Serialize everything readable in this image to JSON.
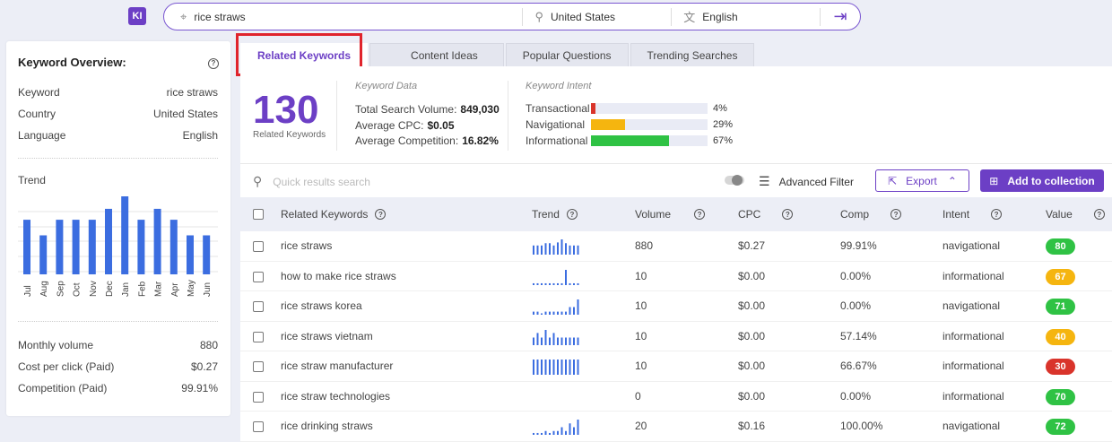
{
  "app": {
    "logo": "KI"
  },
  "search": {
    "keyword": "rice straws",
    "country": "United States",
    "language": "English"
  },
  "overview": {
    "title": "Keyword Overview:",
    "rows": [
      {
        "label": "Keyword",
        "value": "rice straws"
      },
      {
        "label": "Country",
        "value": "United States"
      },
      {
        "label": "Language",
        "value": "English"
      }
    ],
    "trend_label": "Trend",
    "trend": {
      "months": [
        "Jul",
        "Aug",
        "Sep",
        "Oct",
        "Nov",
        "Dec",
        "Jan",
        "Feb",
        "Mar",
        "Apr",
        "May",
        "Jun"
      ],
      "values": [
        0.7,
        0.5,
        0.7,
        0.7,
        0.7,
        0.84,
        1.0,
        0.7,
        0.84,
        0.7,
        0.5,
        0.5
      ]
    },
    "metrics": [
      {
        "label": "Monthly volume",
        "value": "880"
      },
      {
        "label": "Cost per click (Paid)",
        "value": "$0.27"
      },
      {
        "label": "Competition (Paid)",
        "value": "99.91%"
      }
    ]
  },
  "tabs": [
    {
      "label": "Related Keywords",
      "active": true
    },
    {
      "label": "Content Ideas",
      "active": false
    },
    {
      "label": "Popular Questions",
      "active": false
    },
    {
      "label": "Trending Searches",
      "active": false
    }
  ],
  "summary": {
    "count": "130",
    "count_label": "Related Keywords",
    "keyword_data_title": "Keyword Data",
    "total_volume_label": "Total Search Volume:",
    "total_volume": "849,030",
    "avg_cpc_label": "Average CPC:",
    "avg_cpc": "$0.05",
    "avg_comp_label": "Average Competition:",
    "avg_comp": "16.82%",
    "intent_title": "Keyword Intent",
    "intents": [
      {
        "label": "Transactional",
        "pct": "4%",
        "value": 0.04,
        "color": "#d9342b"
      },
      {
        "label": "Navigational",
        "pct": "29%",
        "value": 0.29,
        "color": "#f5b50f"
      },
      {
        "label": "Informational",
        "pct": "67%",
        "value": 0.67,
        "color": "#2fc244"
      }
    ]
  },
  "toolbar": {
    "search_placeholder": "Quick results search",
    "advanced_filter": "Advanced Filter",
    "export": "Export",
    "add_to_collection": "Add to collection"
  },
  "table": {
    "headers": {
      "keyword": "Related Keywords",
      "trend": "Trend",
      "volume": "Volume",
      "cpc": "CPC",
      "comp": "Comp",
      "intent": "Intent",
      "value": "Value"
    },
    "rows": [
      {
        "keyword": "rice straws",
        "volume": "880",
        "cpc": "$0.27",
        "comp": "99.91%",
        "intent": "navigational",
        "value": "80",
        "value_color": "#2fc244",
        "spark": [
          0.6,
          0.6,
          0.6,
          0.75,
          0.75,
          0.6,
          0.8,
          1.0,
          0.75,
          0.6,
          0.6,
          0.6
        ]
      },
      {
        "keyword": "how to make rice straws",
        "volume": "10",
        "cpc": "$0.00",
        "comp": "0.00%",
        "intent": "informational",
        "value": "67",
        "value_color": "#f5b50f",
        "spark": [
          0.12,
          0.12,
          0.12,
          0.12,
          0.12,
          0.12,
          0.12,
          0.12,
          1.0,
          0.12,
          0.12,
          0.12
        ]
      },
      {
        "keyword": "rice straws korea",
        "volume": "10",
        "cpc": "$0.00",
        "comp": "0.00%",
        "intent": "navigational",
        "value": "71",
        "value_color": "#2fc244",
        "spark": [
          0.2,
          0.2,
          0,
          0.2,
          0.2,
          0.2,
          0.2,
          0.2,
          0.2,
          0.5,
          0.5,
          1.0
        ]
      },
      {
        "keyword": "rice straws vietnam",
        "volume": "10",
        "cpc": "$0.00",
        "comp": "57.14%",
        "intent": "informational",
        "value": "40",
        "value_color": "#f5b50f",
        "spark": [
          0.5,
          0.8,
          0.5,
          1.0,
          0.5,
          0.8,
          0.5,
          0.5,
          0.5,
          0.5,
          0.5,
          0.5
        ]
      },
      {
        "keyword": "rice straw manufacturer",
        "volume": "10",
        "cpc": "$0.00",
        "comp": "66.67%",
        "intent": "informational",
        "value": "30",
        "value_color": "#d9342b",
        "spark": [
          1,
          1,
          1,
          1,
          1,
          1,
          1,
          1,
          1,
          1,
          1,
          1
        ]
      },
      {
        "keyword": "rice straw technologies",
        "volume": "0",
        "cpc": "$0.00",
        "comp": "0.00%",
        "intent": "informational",
        "value": "70",
        "value_color": "#2fc244",
        "spark": []
      },
      {
        "keyword": "rice drinking straws",
        "volume": "20",
        "cpc": "$0.16",
        "comp": "100.00%",
        "intent": "navigational",
        "value": "72",
        "value_color": "#2fc244",
        "spark": [
          0.12,
          0.12,
          0.12,
          0.25,
          0.12,
          0.25,
          0.25,
          0.5,
          0.25,
          0.75,
          0.5,
          1.0
        ]
      }
    ]
  }
}
